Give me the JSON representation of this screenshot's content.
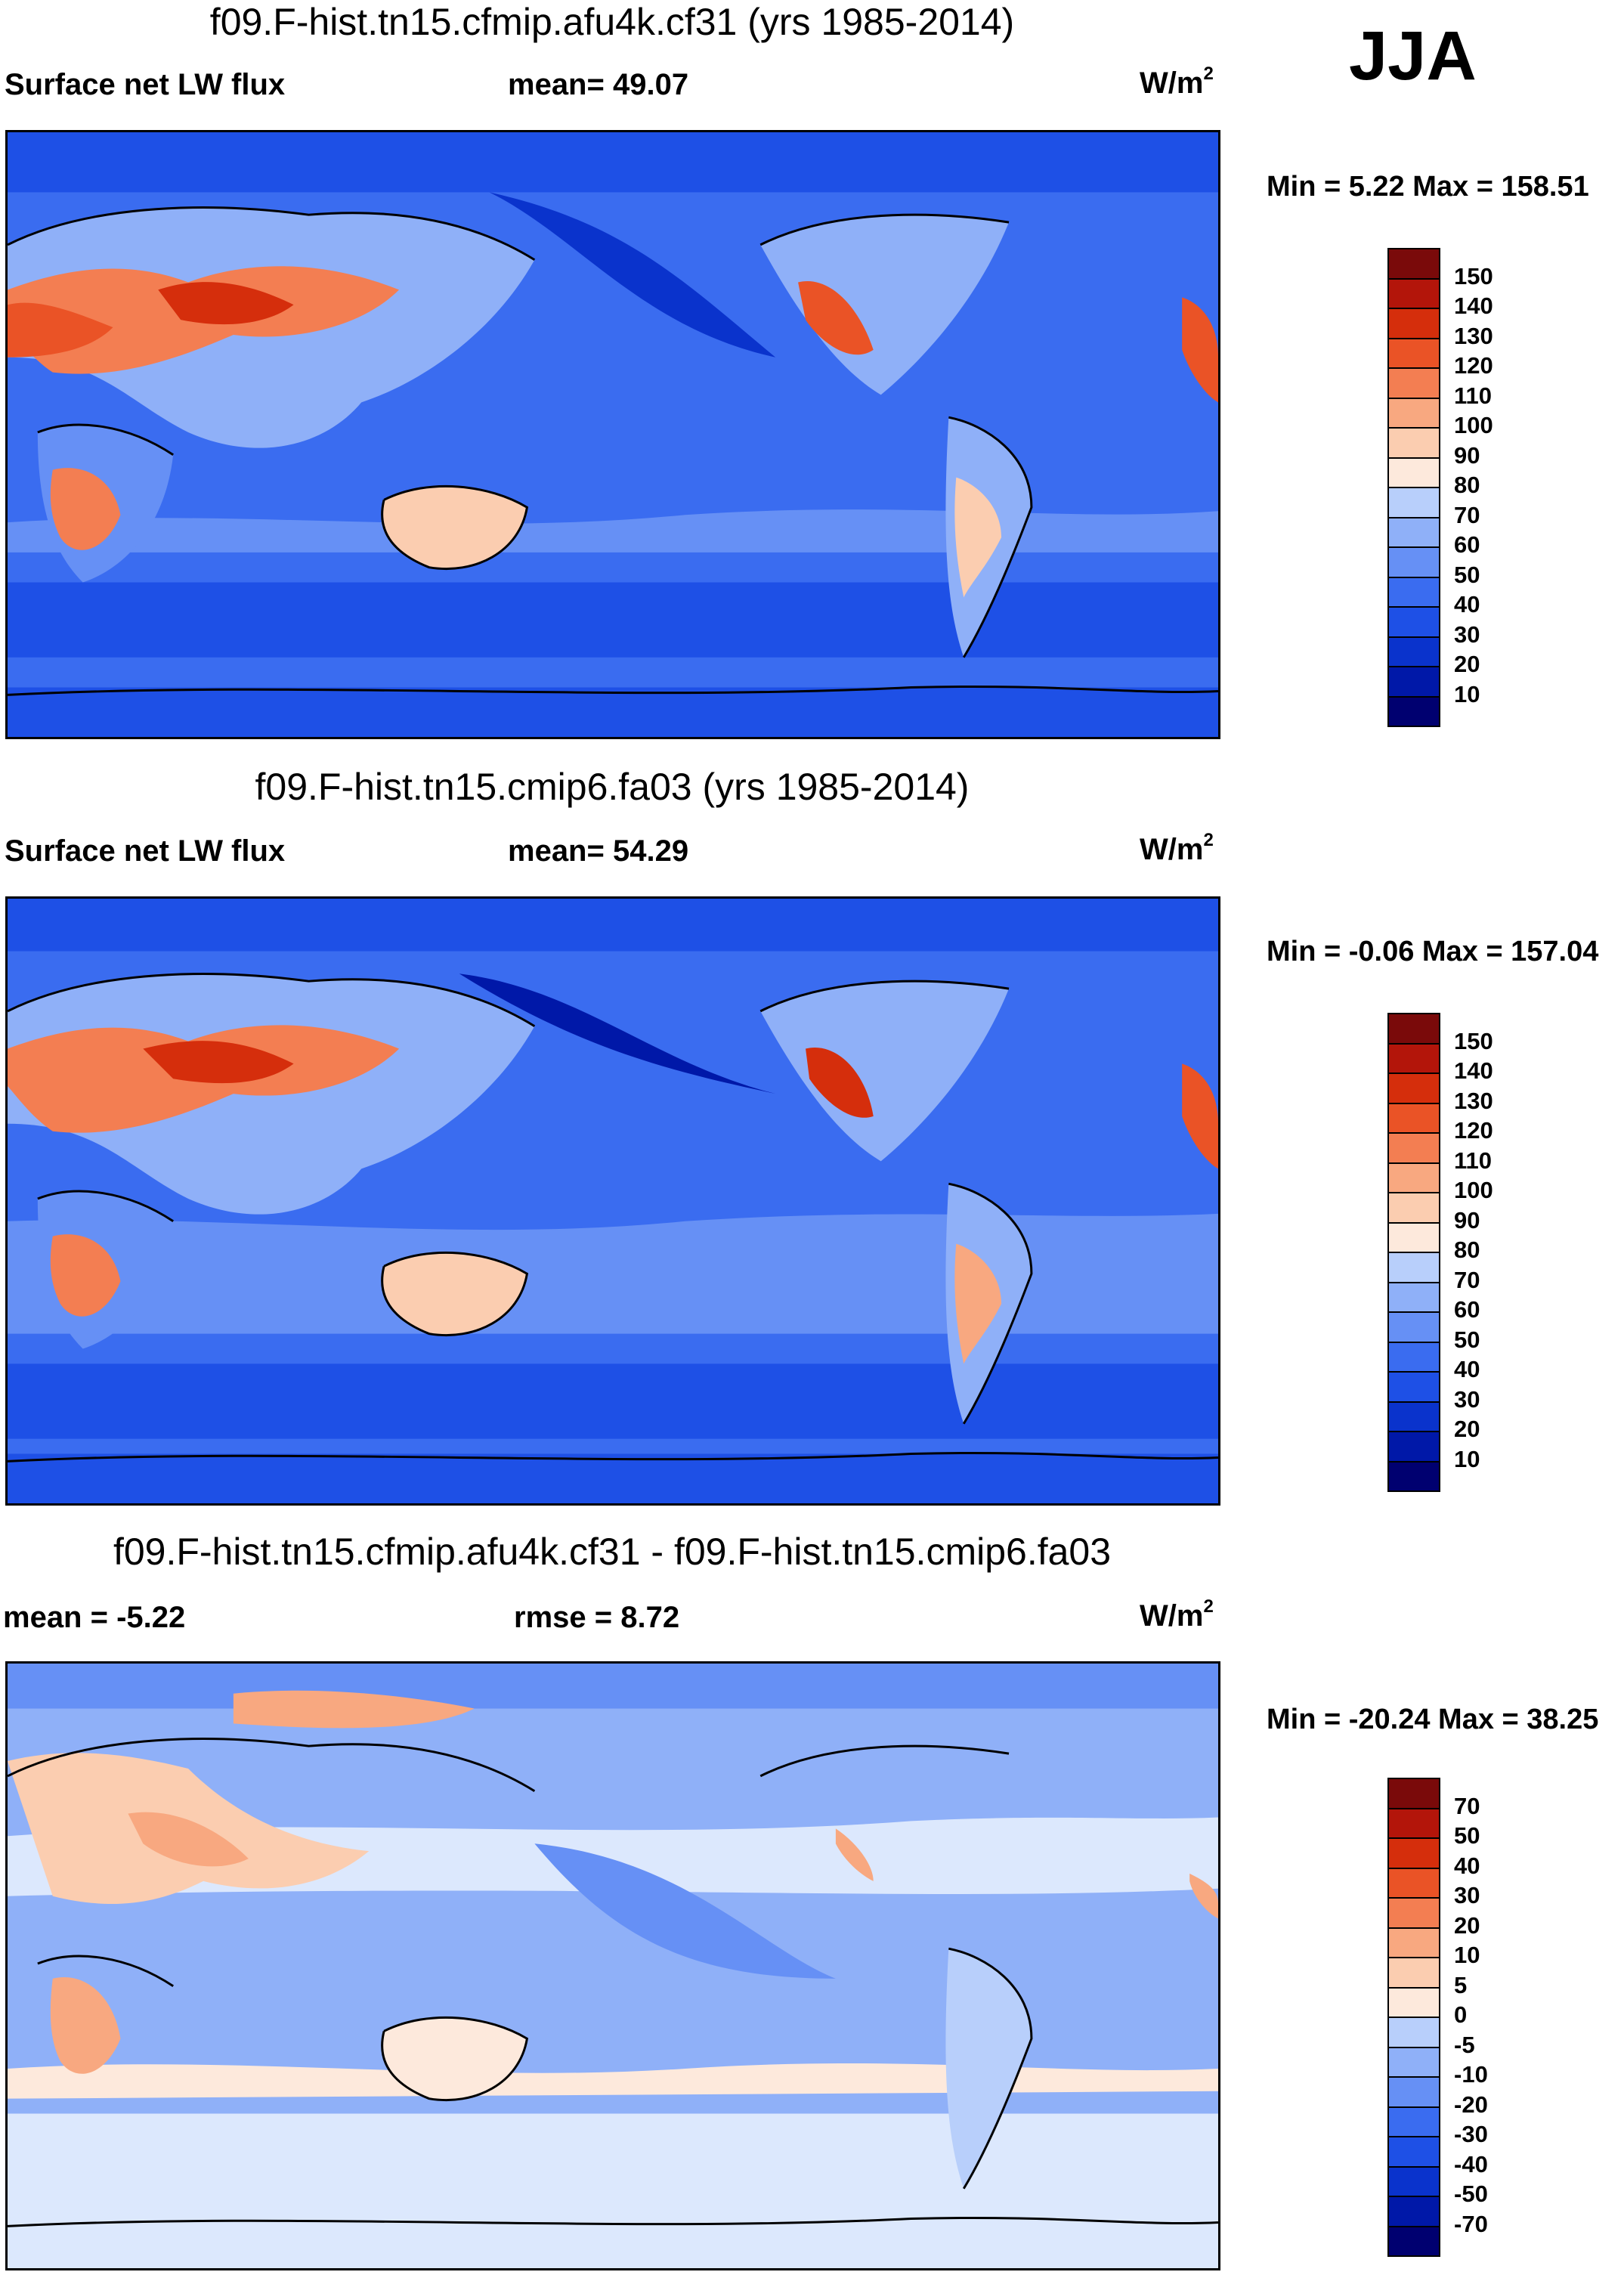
{
  "season": "JJA",
  "colors": {
    "abs": [
      "#000070",
      "#0018a8",
      "#0a33cc",
      "#1e50e6",
      "#3a6cf0",
      "#6690f5",
      "#8fb0f8",
      "#b8cffb",
      "#dce8fd",
      "#fde9dc",
      "#fbcdb0",
      "#f8a880",
      "#f37e52",
      "#ea5326",
      "#d52e0c",
      "#b3150a",
      "#7a0a0a"
    ],
    "diff": [
      "#000070",
      "#0018a8",
      "#0a33cc",
      "#1e50e6",
      "#3a6cf0",
      "#6690f5",
      "#8fb0f8",
      "#b8cffb",
      "#dce8fd",
      "#fde9dc",
      "#fbcdb0",
      "#f8a880",
      "#f37e52",
      "#ea5326",
      "#d52e0c",
      "#b3150a",
      "#7a0a0a"
    ]
  },
  "panels": [
    {
      "title": "f09.F-hist.tn15.cfmip.afu4k.cf31 (yrs 1985-2014)",
      "left_label": "Surface net LW flux",
      "mid_label": "mean=  49.07",
      "units": "W/m",
      "units_sup": "2",
      "min_max": "Min =   5.22 Max = 158.51",
      "legend_ticks": [
        "150",
        "140",
        "130",
        "120",
        "110",
        "100",
        "90",
        "80",
        "70",
        "60",
        "50",
        "40",
        "30",
        "20",
        "10"
      ]
    },
    {
      "title": "f09.F-hist.tn15.cmip6.fa03 (yrs 1985-2014)",
      "left_label": "Surface net LW flux",
      "mid_label": "mean=  54.29",
      "units": "W/m",
      "units_sup": "2",
      "min_max": "Min =  -0.06 Max = 157.04",
      "legend_ticks": [
        "150",
        "140",
        "130",
        "120",
        "110",
        "100",
        "90",
        "80",
        "70",
        "60",
        "50",
        "40",
        "30",
        "20",
        "10"
      ]
    },
    {
      "title": "f09.F-hist.tn15.cfmip.afu4k.cf31 - f09.F-hist.tn15.cmip6.fa03",
      "left_label": "mean =  -5.22",
      "mid_label": "rmse =    8.72",
      "units": "W/m",
      "units_sup": "2",
      "min_max": "Min = -20.24 Max =  38.25",
      "legend_ticks": [
        "70",
        "50",
        "40",
        "30",
        "20",
        "10",
        "5",
        "0",
        "-5",
        "-10",
        "-20",
        "-30",
        "-40",
        "-50",
        "-70"
      ]
    }
  ]
}
